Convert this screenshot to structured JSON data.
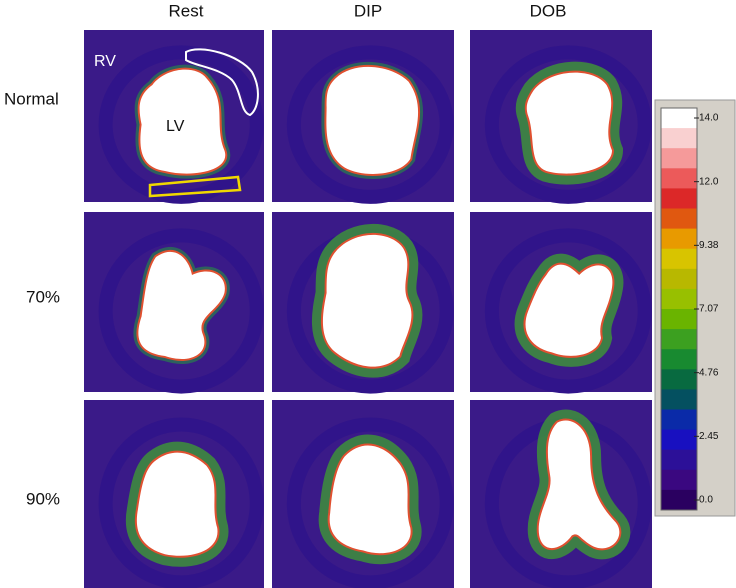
{
  "columns": [
    "Rest",
    "DIP",
    "DOB"
  ],
  "rows": [
    "Normal",
    "70%",
    "90%"
  ],
  "annotations": {
    "rv": "RV",
    "lv": "LV"
  },
  "colorbar": {
    "labels": [
      "14.0",
      "12.0",
      "9.38",
      "7.07",
      "4.76",
      "2.45",
      "0.0"
    ]
  }
}
